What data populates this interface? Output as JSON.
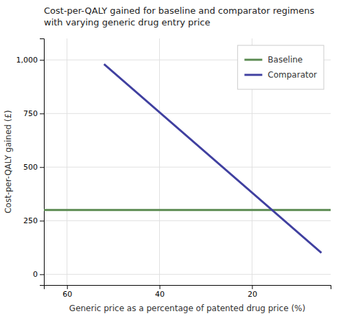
{
  "chart_data": {
    "type": "line",
    "title": "Cost-per-QALY gained for baseline and comparator regimens\nwith varying generic drug entry price",
    "xlabel": "Generic price as a percentage of patented drug price (%)",
    "ylabel": "Cost-per-QALY gained (£)",
    "series": [
      {
        "name": "Baseline",
        "color": "#5a8a50",
        "x": [
          65,
          3
        ],
        "values": [
          300,
          300
        ]
      },
      {
        "name": "Comparator",
        "color": "#4040a0",
        "x": [
          52,
          5
        ],
        "values": [
          980,
          100
        ]
      }
    ],
    "xlim": [
      65,
      3
    ],
    "ylim": [
      -50,
      1100
    ],
    "xticks": [
      60,
      40,
      20
    ],
    "yticks": [
      0,
      250,
      500,
      750,
      {
        "value": 1000,
        "label": "1,000"
      }
    ],
    "grid": true,
    "legend": "upper right"
  }
}
